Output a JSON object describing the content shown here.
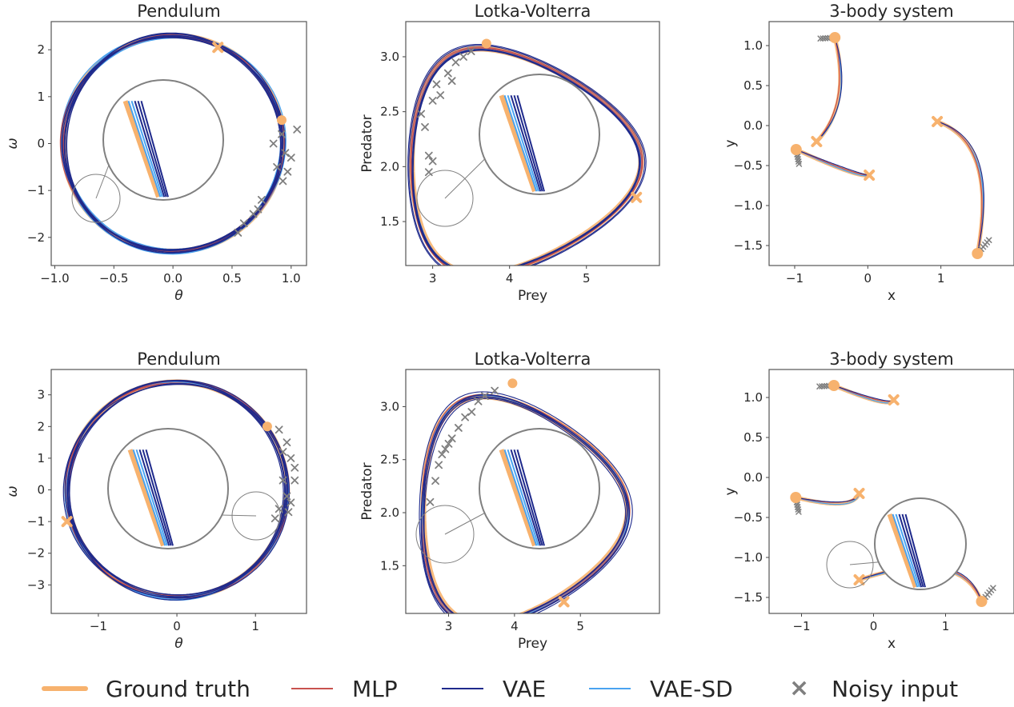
{
  "colors": {
    "ground_truth": "#f7b26e",
    "mlp": "#c8524e",
    "vae": "#1f2a8c",
    "vae_sd": "#4aa3f0",
    "noisy": "#7f7f7f",
    "zoom": "#808080"
  },
  "legend": [
    {
      "key": "ground_truth",
      "label": "Ground truth"
    },
    {
      "key": "mlp",
      "label": "MLP"
    },
    {
      "key": "vae",
      "label": "VAE"
    },
    {
      "key": "vae_sd",
      "label": "VAE-SD"
    },
    {
      "key": "noisy",
      "label": "Noisy input"
    }
  ],
  "chart_data": [
    {
      "type": "line",
      "system": "pendulum",
      "title": "Pendulum",
      "xlabel": "θ",
      "ylabel": "ω",
      "xlim": [
        -1.03,
        1.13
      ],
      "ylim": [
        -2.6,
        2.6
      ],
      "xticks": [
        -1.0,
        -0.5,
        0.0,
        0.5,
        1.0
      ],
      "xticklabels": [
        "−1.0",
        "−0.5",
        "0.0",
        "0.5",
        "1.0"
      ],
      "yticks": [
        -2,
        -1,
        0,
        1,
        2
      ],
      "yticklabels": [
        "−2",
        "−1",
        "0",
        "1",
        "2"
      ],
      "grid": false,
      "amplitude": 0.93,
      "omega_max": 2.3,
      "start_point": [
        0.92,
        0.5
      ],
      "end_point": [
        0.38,
        2.05
      ],
      "noisy_input": [
        [
          1.05,
          0.3
        ],
        [
          0.92,
          0.2
        ],
        [
          0.95,
          -0.2
        ],
        [
          1.0,
          -0.3
        ],
        [
          0.88,
          -0.5
        ],
        [
          0.93,
          -0.8
        ],
        [
          0.75,
          -1.2
        ],
        [
          0.68,
          -1.5
        ],
        [
          0.6,
          -1.7
        ],
        [
          0.55,
          -1.9
        ],
        [
          0.72,
          -1.4
        ],
        [
          0.85,
          0.0
        ],
        [
          0.97,
          -0.6
        ]
      ],
      "inset_zoom": true
    },
    {
      "type": "line",
      "system": "lotka_volterra",
      "title": "Lotka-Volterra",
      "xlabel": "Prey",
      "ylabel": "Predator",
      "xlim": [
        2.65,
        5.95
      ],
      "ylim": [
        1.1,
        3.32
      ],
      "xticks": [
        3,
        4,
        5
      ],
      "xticklabels": [
        "3",
        "4",
        "5"
      ],
      "yticks": [
        1.5,
        2.0,
        2.5,
        3.0
      ],
      "yticklabels": [
        "1.5",
        "2.0",
        "2.5",
        "3.0"
      ],
      "grid": false,
      "prey_range": [
        2.82,
        5.8
      ],
      "predator_range": [
        1.2,
        3.2
      ],
      "start_point": [
        3.7,
        3.12
      ],
      "end_point": [
        5.65,
        1.72
      ],
      "noisy_input": [
        [
          2.85,
          2.48
        ],
        [
          2.9,
          2.36
        ],
        [
          2.95,
          2.1
        ],
        [
          3.0,
          2.6
        ],
        [
          3.05,
          2.75
        ],
        [
          3.1,
          2.65
        ],
        [
          3.2,
          2.85
        ],
        [
          3.3,
          2.95
        ],
        [
          3.4,
          3.0
        ],
        [
          3.5,
          3.05
        ],
        [
          2.95,
          1.95
        ],
        [
          3.0,
          2.05
        ],
        [
          3.25,
          2.78
        ]
      ],
      "inset_zoom": true
    },
    {
      "type": "line",
      "system": "three_body",
      "title": "3-body system",
      "xlabel": "x",
      "ylabel": "y",
      "xlim": [
        -1.35,
        2.0
      ],
      "ylim": [
        -1.75,
        1.3
      ],
      "xticks": [
        -1,
        0,
        1
      ],
      "xticklabels": [
        "−1",
        "0",
        "1"
      ],
      "yticks": [
        -1.5,
        -1.0,
        -0.5,
        0.0,
        0.5,
        1.0
      ],
      "yticklabels": [
        "−1.5",
        "−1.0",
        "−0.5",
        "0.0",
        "0.5",
        "1.0"
      ],
      "grid": false,
      "start_points": [
        [
          -0.45,
          1.1
        ],
        [
          -0.98,
          -0.3
        ],
        [
          1.5,
          -1.6
        ]
      ],
      "end_points": [
        [
          -0.7,
          -0.2
        ],
        [
          0.02,
          -0.62
        ],
        [
          0.95,
          0.05
        ]
      ],
      "inset_zoom": false
    },
    {
      "type": "line",
      "system": "pendulum",
      "title": "Pendulum",
      "xlabel": "θ",
      "ylabel": "ω",
      "xlim": [
        -1.6,
        1.65
      ],
      "ylim": [
        -3.9,
        3.8
      ],
      "xticks": [
        -1,
        0,
        1
      ],
      "xticklabels": [
        "−1",
        "0",
        "1"
      ],
      "yticks": [
        -3,
        -2,
        -1,
        0,
        1,
        2,
        3
      ],
      "yticklabels": [
        "−3",
        "−2",
        "−1",
        "0",
        "1",
        "2",
        "3"
      ],
      "grid": false,
      "amplitude": 1.4,
      "omega_max": 3.4,
      "start_point": [
        1.15,
        2.0
      ],
      "end_point": [
        -1.4,
        -1.0
      ],
      "noisy_input": [
        [
          1.3,
          1.9
        ],
        [
          1.4,
          1.5
        ],
        [
          1.45,
          1.0
        ],
        [
          1.5,
          0.7
        ],
        [
          1.35,
          0.3
        ],
        [
          1.4,
          -0.2
        ],
        [
          1.3,
          -0.6
        ],
        [
          1.45,
          -0.4
        ],
        [
          1.5,
          0.3
        ],
        [
          1.25,
          -0.9
        ],
        [
          1.35,
          1.2
        ],
        [
          1.42,
          -0.7
        ]
      ],
      "inset_zoom": true
    },
    {
      "type": "line",
      "system": "lotka_volterra",
      "title": "Lotka-Volterra",
      "xlabel": "Prey",
      "ylabel": "Predator",
      "xlim": [
        2.35,
        6.2
      ],
      "ylim": [
        1.05,
        3.35
      ],
      "xticks": [
        3,
        4,
        5
      ],
      "xticklabels": [
        "3",
        "4",
        "5"
      ],
      "yticks": [
        1.5,
        2.0,
        2.5,
        3.0
      ],
      "yticklabels": [
        "1.5",
        "2.0",
        "2.5",
        "3.0"
      ],
      "grid": false,
      "prey_range": [
        2.7,
        5.8
      ],
      "predator_range": [
        1.13,
        3.22
      ],
      "start_point": [
        3.97,
        3.22
      ],
      "end_point": [
        4.75,
        1.16
      ],
      "noisy_input": [
        [
          2.72,
          2.1
        ],
        [
          2.8,
          2.3
        ],
        [
          2.85,
          2.45
        ],
        [
          2.95,
          2.6
        ],
        [
          3.05,
          2.7
        ],
        [
          3.15,
          2.8
        ],
        [
          3.25,
          2.9
        ],
        [
          3.35,
          2.95
        ],
        [
          3.45,
          3.05
        ],
        [
          3.55,
          3.1
        ],
        [
          3.7,
          3.15
        ],
        [
          2.9,
          2.55
        ],
        [
          3.0,
          2.65
        ]
      ],
      "inset_zoom": true
    },
    {
      "type": "line",
      "system": "three_body",
      "title": "3-body system",
      "xlabel": "x",
      "ylabel": "y",
      "xlim": [
        -1.45,
        1.95
      ],
      "ylim": [
        -1.7,
        1.35
      ],
      "xticks": [
        -1,
        0,
        1
      ],
      "xticklabels": [
        "−1",
        "0",
        "1"
      ],
      "yticks": [
        -1.5,
        -1.0,
        -0.5,
        0.0,
        0.5,
        1.0
      ],
      "yticklabels": [
        "−1.5",
        "−1.0",
        "−0.5",
        "0.0",
        "0.5",
        "1.0"
      ],
      "grid": false,
      "start_points": [
        [
          -0.55,
          1.15
        ],
        [
          -1.08,
          -0.25
        ],
        [
          1.5,
          -1.55
        ]
      ],
      "end_points": [
        [
          0.28,
          0.97
        ],
        [
          -0.2,
          -0.2
        ],
        [
          -0.2,
          -1.28
        ]
      ],
      "inset_zoom": true
    }
  ]
}
